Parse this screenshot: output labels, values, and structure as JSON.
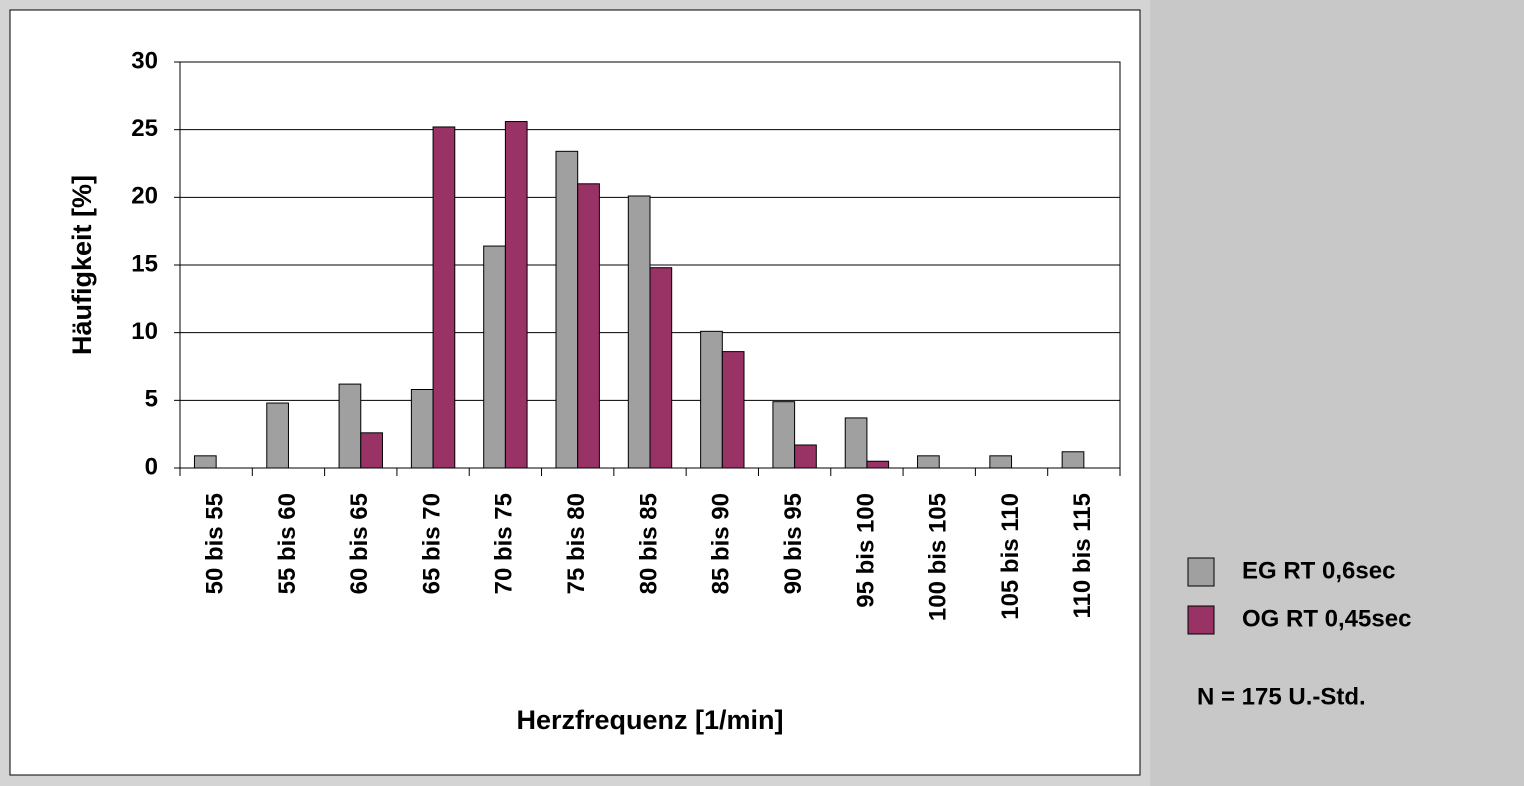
{
  "chart_data": {
    "type": "bar",
    "x_label": "Herzfrequenz [1/min]",
    "y_label": "Häufigkeit [%]",
    "categories": [
      "50 bis 55",
      "55 bis 60",
      "60 bis 65",
      "65 bis 70",
      "70 bis 75",
      "75 bis 80",
      "80 bis 85",
      "85 bis 90",
      "90 bis 95",
      "95 bis 100",
      "100 bis 105",
      "105 bis 110",
      "110 bis 115"
    ],
    "series": [
      {
        "name": "EG RT 0,6sec",
        "color": "#a0a0a0",
        "values": [
          0.9,
          4.8,
          6.2,
          5.8,
          16.4,
          23.4,
          20.1,
          10.1,
          4.9,
          3.7,
          0.9,
          0.9,
          1.2
        ]
      },
      {
        "name": "OG RT 0,45sec",
        "color": "#993366",
        "values": [
          0,
          0,
          2.6,
          25.2,
          25.6,
          21.0,
          14.8,
          8.6,
          1.7,
          0.5,
          0,
          0,
          0
        ]
      }
    ],
    "ylim": [
      0,
      30
    ],
    "yticks": [
      0,
      5,
      10,
      15,
      20,
      25,
      30
    ],
    "grid": true,
    "legend": "right",
    "annotation": "N = 175 U.-Std."
  }
}
